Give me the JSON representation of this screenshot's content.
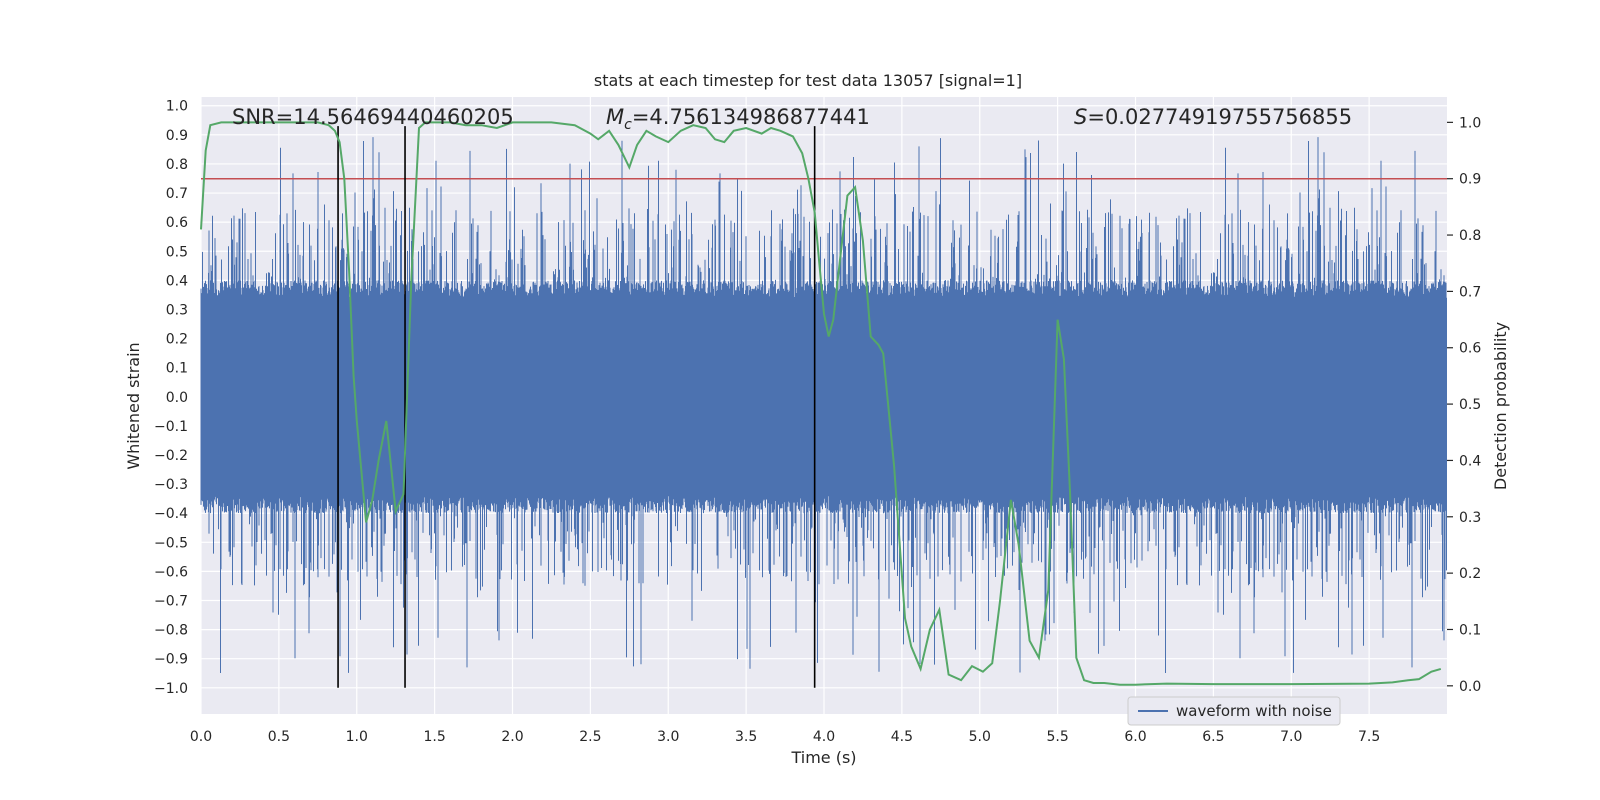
{
  "chart_data": {
    "type": "line",
    "title": "stats at each timestep for test data 13057 [signal=1]",
    "xlabel": "Time (s)",
    "ylabel_left": "Whitened strain",
    "ylabel_right": "Detection probability",
    "xlim": [
      0.0,
      8.0
    ],
    "ylim_left": [
      -1.09,
      1.03
    ],
    "ylim_right": [
      -0.05,
      1.045
    ],
    "x_ticks": [
      0.0,
      0.5,
      1.0,
      1.5,
      2.0,
      2.5,
      3.0,
      3.5,
      4.0,
      4.5,
      5.0,
      5.5,
      6.0,
      6.5,
      7.0,
      7.5
    ],
    "x_tick_labels": [
      "0.0",
      "0.5",
      "1.0",
      "1.5",
      "2.0",
      "2.5",
      "3.0",
      "3.5",
      "4.0",
      "4.5",
      "5.0",
      "5.5",
      "6.0",
      "6.5",
      "7.0",
      "7.5"
    ],
    "y_left_ticks": [
      1.0,
      0.9,
      0.8,
      0.7,
      0.6,
      0.5,
      0.4,
      0.3,
      0.2,
      0.1,
      0.0,
      -0.1,
      -0.2,
      -0.3,
      -0.4,
      -0.5,
      -0.6,
      -0.7,
      -0.8,
      -0.9,
      -1.0
    ],
    "y_left_tick_labels": [
      "1.0",
      "0.9",
      "0.8",
      "0.7",
      "0.6",
      "0.5",
      "0.4",
      "0.3",
      "0.2",
      "0.1",
      "0.0",
      "−0.1",
      "−0.2",
      "−0.3",
      "−0.4",
      "−0.5",
      "−0.6",
      "−0.7",
      "−0.8",
      "−0.9",
      "−1.0"
    ],
    "y_right_ticks": [
      1.0,
      0.9,
      0.8,
      0.7,
      0.6,
      0.5,
      0.4,
      0.3,
      0.2,
      0.1,
      0.0
    ],
    "y_right_tick_labels": [
      "1.0",
      "0.9",
      "0.8",
      "0.7",
      "0.6",
      "0.5",
      "0.4",
      "0.3",
      "0.2",
      "0.1",
      "0.0"
    ],
    "annotations": {
      "snr": "SNR=14.56469440460205",
      "mc_symbol": "M",
      "mc_subscript": "c",
      "mc_value": "=4.756134986877441",
      "s_symbol": "S",
      "s_value": "=0.02774919755756855"
    },
    "vertical_markers_x": [
      0.88,
      1.31,
      3.94
    ],
    "vertical_marker_range_left": [
      -1.0,
      0.93
    ],
    "threshold_right": 0.9,
    "detection_probability": {
      "x": [
        0.0,
        0.03,
        0.06,
        0.13,
        0.2,
        0.4,
        0.6,
        0.75,
        0.82,
        0.86,
        0.89,
        0.92,
        0.95,
        0.98,
        1.0,
        1.02,
        1.06,
        1.1,
        1.14,
        1.19,
        1.25,
        1.3,
        1.35,
        1.4,
        1.44,
        1.5,
        1.6,
        1.7,
        1.8,
        1.9,
        2.0,
        2.1,
        2.25,
        2.4,
        2.5,
        2.55,
        2.62,
        2.68,
        2.75,
        2.8,
        2.86,
        2.92,
        3.0,
        3.08,
        3.16,
        3.24,
        3.3,
        3.36,
        3.42,
        3.5,
        3.6,
        3.66,
        3.72,
        3.8,
        3.86,
        3.9,
        3.94,
        3.97,
        4.0,
        4.03,
        4.06,
        4.1,
        4.15,
        4.2,
        4.25,
        4.3,
        4.35,
        4.38,
        4.45,
        4.52,
        4.56,
        4.62,
        4.68,
        4.74,
        4.8,
        4.88,
        4.95,
        5.02,
        5.08,
        5.13,
        5.2,
        5.25,
        5.32,
        5.38,
        5.44,
        5.5,
        5.54,
        5.58,
        5.62,
        5.67,
        5.73,
        5.8,
        5.9,
        6.0,
        6.2,
        6.5,
        7.0,
        7.5,
        7.65,
        7.75,
        7.82,
        7.9,
        7.96
      ],
      "p": [
        0.81,
        0.95,
        0.995,
        1.0,
        1.0,
        1.0,
        1.0,
        1.0,
        0.995,
        0.985,
        0.965,
        0.9,
        0.74,
        0.55,
        0.47,
        0.41,
        0.29,
        0.33,
        0.4,
        0.47,
        0.31,
        0.34,
        0.72,
        0.99,
        1.0,
        1.0,
        1.0,
        0.995,
        0.995,
        0.99,
        1.0,
        1.0,
        1.0,
        0.995,
        0.98,
        0.97,
        0.985,
        0.96,
        0.92,
        0.96,
        0.985,
        0.975,
        0.965,
        0.985,
        0.995,
        0.99,
        0.97,
        0.965,
        0.985,
        0.99,
        0.98,
        0.99,
        0.985,
        0.975,
        0.945,
        0.9,
        0.84,
        0.75,
        0.66,
        0.62,
        0.65,
        0.75,
        0.87,
        0.885,
        0.79,
        0.62,
        0.605,
        0.59,
        0.39,
        0.12,
        0.07,
        0.03,
        0.1,
        0.135,
        0.02,
        0.01,
        0.035,
        0.025,
        0.04,
        0.15,
        0.33,
        0.25,
        0.08,
        0.05,
        0.17,
        0.65,
        0.58,
        0.34,
        0.05,
        0.01,
        0.005,
        0.005,
        0.002,
        0.002,
        0.004,
        0.003,
        0.003,
        0.004,
        0.006,
        0.01,
        0.012,
        0.025,
        0.03
      ]
    },
    "legend": {
      "entry": "waveform with noise",
      "placement": "lower-right"
    },
    "colors": {
      "strain": "#4c72b0",
      "probability": "#55a868",
      "threshold": "#c44e52",
      "marker": "#000000",
      "plot_background": "#eaeaf2",
      "grid": "#ffffff"
    }
  }
}
